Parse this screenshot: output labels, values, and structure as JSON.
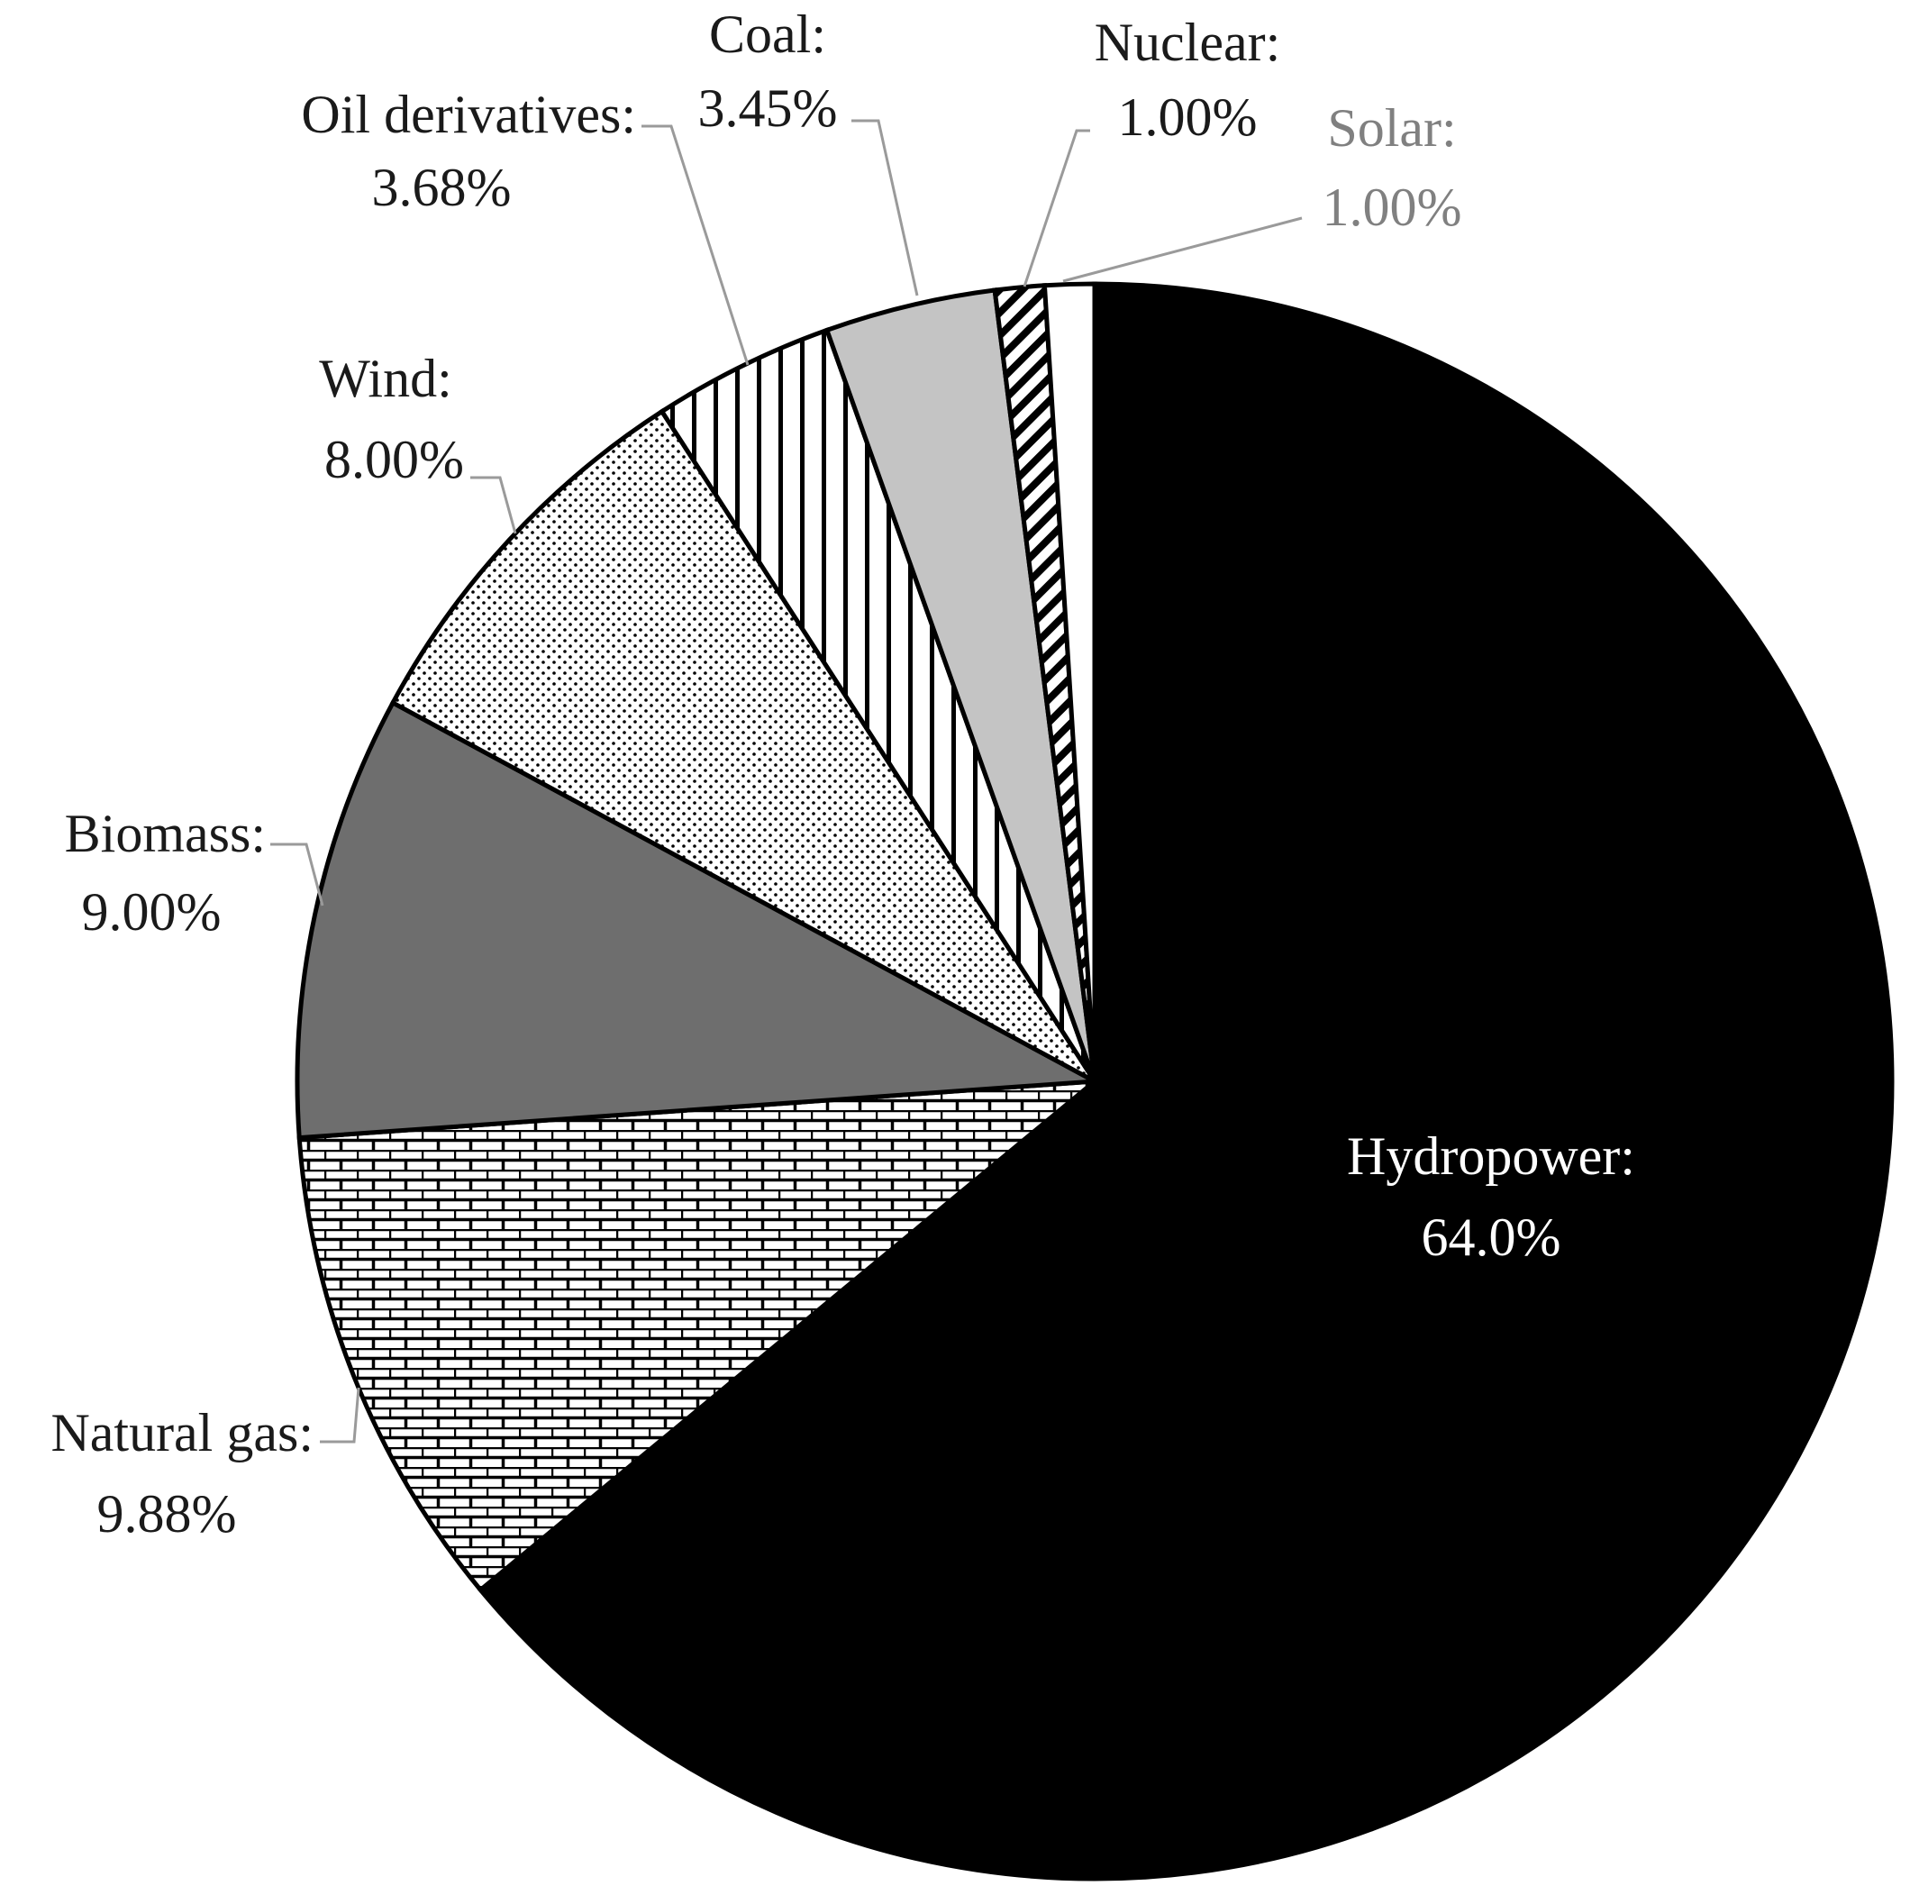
{
  "chart_data": {
    "type": "pie",
    "slices": [
      {
        "label": "Hydropower:",
        "value_label": "64.0%",
        "value": 64.0,
        "pattern": "solid-black"
      },
      {
        "label": "Natural gas:",
        "value_label": "9.88%",
        "value": 9.88,
        "pattern": "brick"
      },
      {
        "label": "Biomass:",
        "value_label": "9.00%",
        "value": 9.0,
        "pattern": "solid-dark-gray"
      },
      {
        "label": "Wind:",
        "value_label": "8.00%",
        "value": 8.0,
        "pattern": "dots"
      },
      {
        "label": "Oil derivatives:",
        "value_label": "3.68%",
        "value": 3.68,
        "pattern": "vertical-lines"
      },
      {
        "label": "Coal:",
        "value_label": "3.45%",
        "value": 3.45,
        "pattern": "solid-light-gray"
      },
      {
        "label": "Nuclear:",
        "value_label": "1.00%",
        "value": 1.0,
        "pattern": "diagonal-stripes"
      },
      {
        "label": "Solar:",
        "value_label": "1.00%",
        "value": 1.0,
        "pattern": "solid-white"
      }
    ],
    "start_angle": "12 o'clock",
    "direction": "clockwise",
    "legend": "none",
    "colors": {
      "solid-black": "#000000",
      "solid-dark-gray": "#6e6e6e",
      "solid-light-gray": "#c4c4c4",
      "solid-white": "#ffffff",
      "pattern-ink": "#000000",
      "pattern-paper": "#ffffff",
      "leader-line": "#9a9a9a",
      "solar-label": "#808080"
    }
  }
}
